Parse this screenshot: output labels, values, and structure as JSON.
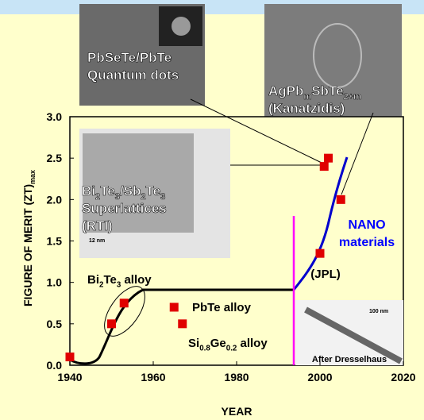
{
  "chart_data": {
    "type": "scatter",
    "x_label": "YEAR",
    "y_label": [
      "FIGURE OF MERIT (ZT)",
      "max"
    ],
    "xlim": [
      1940,
      2020
    ],
    "ylim": [
      0,
      3
    ],
    "xticks": [
      1940,
      1960,
      1980,
      2000,
      2020
    ],
    "yticks": [
      {
        "value": 0,
        "label": "0.0"
      },
      0.5,
      {
        "value": 1,
        "label": "1.0"
      },
      1.5,
      {
        "value": 2,
        "label": "2.0"
      },
      2.5,
      {
        "value": 3,
        "label": "3.0"
      }
    ],
    "color": "#e00000",
    "x": [
      1940,
      1950,
      1953,
      1965,
      1967,
      2000,
      2001,
      2002,
      2005
    ],
    "values": [
      0.1,
      0.5,
      0.75,
      0.7,
      0.5,
      1.35,
      2.4,
      2.5,
      2.0
    ],
    "annotations": [
      {
        "lines": [
          [
            "PbSeTe/PbTe"
          ],
          [
            "Quantum dots"
          ]
        ]
      },
      {
        "lines": [
          [
            "AgPb",
            "m",
            "SbTe",
            "2+m"
          ],
          [
            "(Kanatzidis)"
          ]
        ]
      },
      {
        "lines": [
          [
            "Bi",
            "2",
            "Te",
            "3",
            "/Sb",
            "2",
            "Te",
            "3"
          ],
          [
            "Superlattices"
          ],
          [
            "(RTI)"
          ]
        ]
      },
      {
        "lines": [
          [
            "NANO"
          ],
          [
            "materials"
          ]
        ]
      },
      {
        "lines": [
          [
            "(JPL)"
          ]
        ]
      },
      {
        "lines": [
          [
            "Bi",
            "2",
            "Te",
            "3",
            " alloy"
          ]
        ]
      },
      {
        "lines": [
          [
            "PbTe alloy"
          ]
        ]
      },
      {
        "lines": [
          [
            "Si",
            "0.8",
            "Ge",
            "0.2",
            " alloy"
          ]
        ]
      },
      {
        "lines": [
          [
            "After Dresselhaus"
          ]
        ]
      },
      {
        "lines": [
          [
            "12 nm"
          ]
        ]
      },
      {
        "lines": [
          [
            "100 nm"
          ]
        ]
      }
    ]
  }
}
